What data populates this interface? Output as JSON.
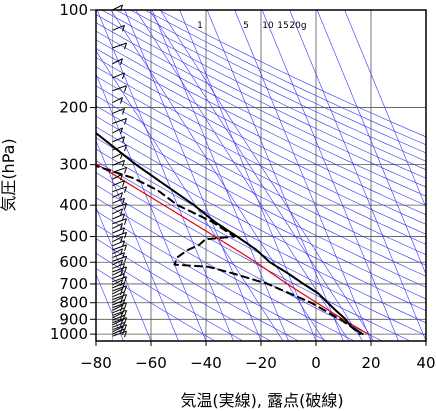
{
  "chart_data": {
    "type": "line",
    "subtype": "skew-T log-P diagram",
    "xlabel": "気温(実線), 露点(破線)",
    "ylabel": "気圧(hPa)",
    "xlim": [
      -80,
      40
    ],
    "ylim": [
      1050,
      100
    ],
    "y_scale": "log",
    "x_ticks": [
      "−80",
      "−60",
      "−40",
      "−20",
      "0",
      "20",
      "40"
    ],
    "y_ticks": [
      "100",
      "200",
      "300",
      "400",
      "500",
      "600",
      "700",
      "800",
      "900",
      "1000"
    ],
    "y_tick_values": [
      100,
      200,
      300,
      400,
      500,
      600,
      700,
      800,
      900,
      1000
    ],
    "mixing_ratio_labels": [
      "1",
      "5",
      "10",
      "15",
      "20g"
    ],
    "grid": true,
    "colors": {
      "temperature": "#000000",
      "dewpoint": "#000000",
      "parcel": "#e00000",
      "background_lines": "#3333ff",
      "grid": "#555555"
    },
    "series": [
      {
        "kind": "temperature",
        "style": "solid",
        "points": [
          [
            100,
            -80
          ],
          [
            120,
            -75
          ],
          [
            140,
            -71
          ],
          [
            150,
            -67
          ],
          [
            170,
            -66
          ],
          [
            200,
            -57
          ],
          [
            250,
            -47
          ],
          [
            300,
            -39
          ],
          [
            350,
            -31
          ],
          [
            400,
            -24
          ],
          [
            450,
            -19
          ],
          [
            500,
            -13
          ],
          [
            550,
            -8
          ],
          [
            600,
            -5
          ],
          [
            650,
            0
          ],
          [
            700,
            4
          ],
          [
            750,
            8
          ],
          [
            800,
            10
          ],
          [
            850,
            12
          ],
          [
            900,
            14
          ],
          [
            950,
            15
          ],
          [
            1000,
            18
          ]
        ]
      },
      {
        "kind": "dewpoint",
        "style": "dashed",
        "points": [
          [
            280,
            -79
          ],
          [
            282,
            -74
          ],
          [
            285,
            -67
          ],
          [
            290,
            -56
          ],
          [
            300,
            -55
          ],
          [
            330,
            -42
          ],
          [
            360,
            -35
          ],
          [
            400,
            -30
          ],
          [
            450,
            -20
          ],
          [
            500,
            -14
          ],
          [
            510,
            -25
          ],
          [
            530,
            -28
          ],
          [
            550,
            -33
          ],
          [
            580,
            -38
          ],
          [
            610,
            -40
          ],
          [
            620,
            -28
          ],
          [
            650,
            -20
          ],
          [
            700,
            -9
          ],
          [
            730,
            -5
          ],
          [
            800,
            4
          ],
          [
            900,
            12
          ],
          [
            950,
            15
          ],
          [
            1000,
            17
          ]
        ]
      },
      {
        "kind": "parcel",
        "style": "solid",
        "points": [
          [
            170,
            -88
          ],
          [
            200,
            -80
          ],
          [
            300,
            -53
          ],
          [
            400,
            -35
          ],
          [
            500,
            -21
          ],
          [
            600,
            -10
          ],
          [
            700,
            -2
          ],
          [
            800,
            6
          ],
          [
            900,
            13
          ],
          [
            1000,
            20
          ]
        ]
      }
    ],
    "wind_barbs_x": -74
  }
}
